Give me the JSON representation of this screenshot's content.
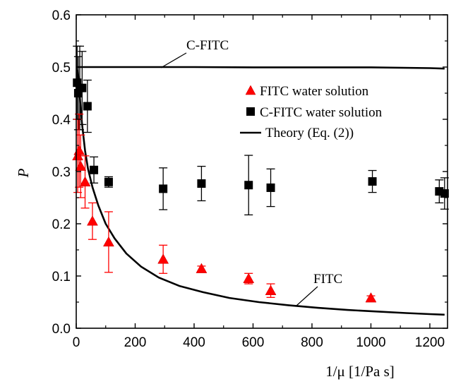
{
  "chart_data": {
    "type": "scatter",
    "xlabel": "1/μ [1/Pa s]",
    "ylabel": "P",
    "xlim": [
      0,
      1260
    ],
    "ylim": [
      0,
      0.6
    ],
    "xticks": [
      0,
      200,
      400,
      600,
      800,
      1000,
      1200
    ],
    "xtick_labels": [
      "0",
      "200",
      "400",
      "600",
      "800",
      "1000",
      "1200"
    ],
    "yticks": [
      0,
      0.1,
      0.2,
      0.3,
      0.4,
      0.5,
      0.6
    ],
    "ytick_labels": [
      "0.0",
      "0.1",
      "0.2",
      "0.3",
      "0.4",
      "0.5",
      "0.6"
    ],
    "grid": false,
    "legend_position": "top-right",
    "legend": [
      {
        "label": "FITC water solution",
        "marker": "triangle",
        "color": "#ff0000"
      },
      {
        "label": "C-FITC water solution",
        "marker": "square",
        "color": "#000000"
      },
      {
        "label": "Theory (Eq. (2))",
        "marker": "line",
        "color": "#000000"
      }
    ],
    "annotations": [
      {
        "text": "C-FITC",
        "arrow_to": [
          230,
          0.5
        ]
      },
      {
        "text": "FITC",
        "arrow_to": [
          430,
          0.042
        ]
      }
    ],
    "series": [
      {
        "name": "FITC water solution",
        "marker": "triangle",
        "color": "#ff0000",
        "points": [
          {
            "x": 5,
            "y": 0.33,
            "err": 0.07
          },
          {
            "x": 10,
            "y": 0.34,
            "err": 0.07
          },
          {
            "x": 15,
            "y": 0.31,
            "err": 0.06
          },
          {
            "x": 30,
            "y": 0.28,
            "err": 0.05
          },
          {
            "x": 55,
            "y": 0.205,
            "err": 0.035
          },
          {
            "x": 110,
            "y": 0.165,
            "err": 0.058
          },
          {
            "x": 295,
            "y": 0.132,
            "err": 0.027
          },
          {
            "x": 425,
            "y": 0.114,
            "err": 0.005
          },
          {
            "x": 585,
            "y": 0.095,
            "err": 0.01
          },
          {
            "x": 660,
            "y": 0.072,
            "err": 0.013
          },
          {
            "x": 1000,
            "y": 0.058,
            "err": 0.004
          }
        ]
      },
      {
        "name": "C-FITC water solution",
        "marker": "square",
        "color": "#000000",
        "points": [
          {
            "x": 3,
            "y": 0.47,
            "err": 0.07
          },
          {
            "x": 7,
            "y": 0.45,
            "err": 0.07
          },
          {
            "x": 12,
            "y": 0.46,
            "err": 0.08
          },
          {
            "x": 20,
            "y": 0.46,
            "err": 0.07
          },
          {
            "x": 38,
            "y": 0.425,
            "err": 0.05
          },
          {
            "x": 60,
            "y": 0.303,
            "err": 0.025
          },
          {
            "x": 110,
            "y": 0.28,
            "err": 0.01
          },
          {
            "x": 295,
            "y": 0.267,
            "err": 0.04
          },
          {
            "x": 425,
            "y": 0.277,
            "err": 0.033
          },
          {
            "x": 585,
            "y": 0.274,
            "err": 0.057
          },
          {
            "x": 660,
            "y": 0.269,
            "err": 0.036
          },
          {
            "x": 1005,
            "y": 0.281,
            "err": 0.021
          },
          {
            "x": 1232,
            "y": 0.262,
            "err": 0.022
          },
          {
            "x": 1250,
            "y": 0.258,
            "err": 0.03
          }
        ]
      },
      {
        "name": "Theory (Eq. (2))",
        "marker": "line",
        "color": "#000000",
        "curves": [
          {
            "label": "C-FITC",
            "points": [
              [
                0,
                0.5
              ],
              [
                200,
                0.5
              ],
              [
                400,
                0.5
              ],
              [
                600,
                0.4995
              ],
              [
                800,
                0.4995
              ],
              [
                1000,
                0.4995
              ],
              [
                1200,
                0.498
              ],
              [
                1250,
                0.497
              ]
            ]
          },
          {
            "label": "FITC",
            "points": [
              [
                5,
                0.495
              ],
              [
                10,
                0.46
              ],
              [
                15,
                0.42
              ],
              [
                20,
                0.39
              ],
              [
                30,
                0.34
              ],
              [
                40,
                0.305
              ],
              [
                55,
                0.27
              ],
              [
                75,
                0.235
              ],
              [
                100,
                0.2
              ],
              [
                130,
                0.172
              ],
              [
                170,
                0.143
              ],
              [
                220,
                0.118
              ],
              [
                280,
                0.097
              ],
              [
                350,
                0.081
              ],
              [
                430,
                0.069
              ],
              [
                520,
                0.058
              ],
              [
                620,
                0.05
              ],
              [
                720,
                0.044
              ],
              [
                820,
                0.039
              ],
              [
                920,
                0.035
              ],
              [
                1020,
                0.032
              ],
              [
                1120,
                0.029
              ],
              [
                1200,
                0.027
              ],
              [
                1250,
                0.026
              ]
            ]
          }
        ]
      }
    ]
  }
}
